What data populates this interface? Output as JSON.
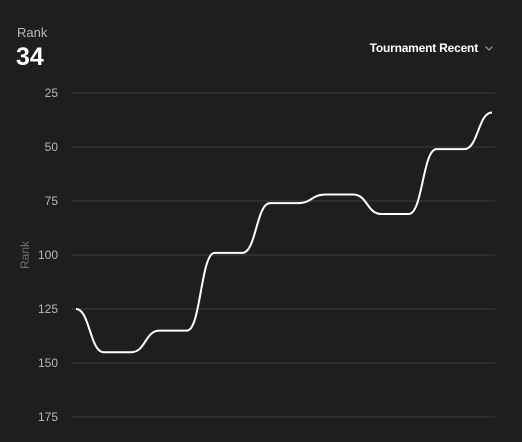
{
  "header": {
    "rank_label": "Rank",
    "rank_value": "34"
  },
  "dropdown": {
    "selected": "Tournament Recent",
    "icon": "chevron-down-icon"
  },
  "colors": {
    "background": "#1e1e1f",
    "grid": "#3a3a48",
    "line": "#ffffff",
    "tick_text": "#b9b9bd",
    "axis_title": "#6f6f74"
  },
  "chart_data": {
    "type": "line",
    "ylabel": "Rank",
    "xlabel": "",
    "title": "",
    "y_inverted": true,
    "ylim": [
      25,
      175
    ],
    "yticks": [
      25,
      50,
      75,
      100,
      125,
      150,
      175
    ],
    "grid": true,
    "series": [
      {
        "values": [
          125,
          145,
          145,
          135,
          135,
          99,
          99,
          76,
          76,
          72,
          72,
          81,
          81,
          51,
          51,
          34
        ]
      }
    ]
  }
}
